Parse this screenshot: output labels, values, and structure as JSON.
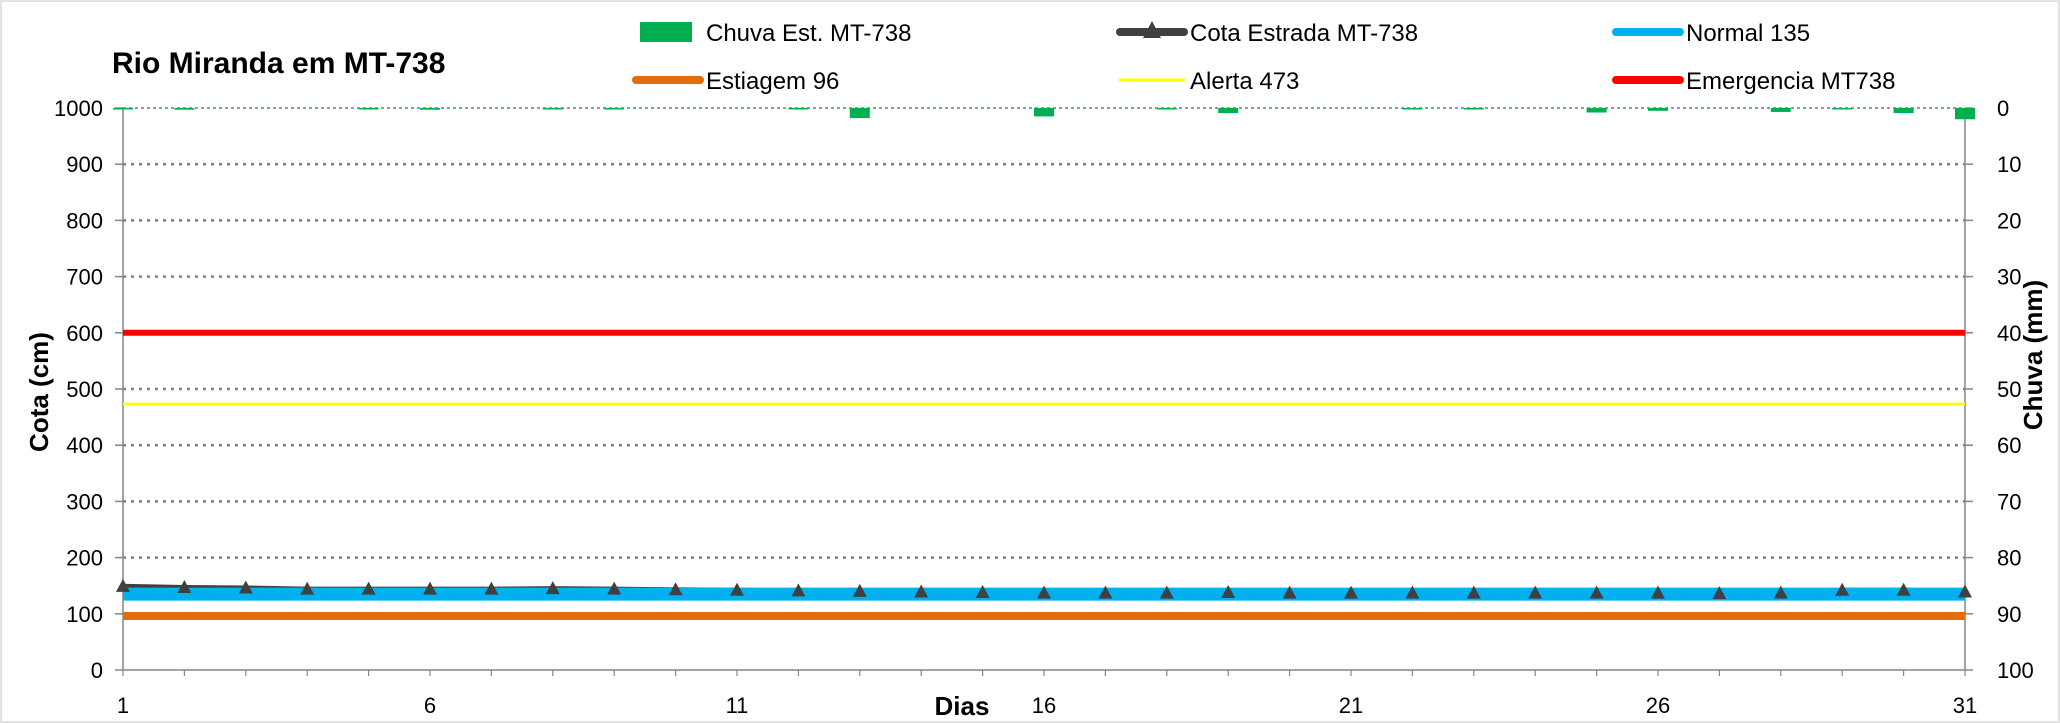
{
  "chart_data": {
    "type": "line",
    "title": "Rio Miranda  em MT-738",
    "xlabel": "Dias",
    "ylabel": "Cota    (cm)",
    "y2label": "Chuva (mm)",
    "xlim": [
      1,
      31
    ],
    "ylim": [
      0,
      1000
    ],
    "y2lim": [
      0,
      100
    ],
    "y2_inverted": true,
    "x_ticks": [
      1,
      6,
      11,
      16,
      21,
      26,
      31
    ],
    "y_ticks": [
      0,
      100,
      200,
      300,
      400,
      500,
      600,
      700,
      800,
      900,
      1000
    ],
    "y2_ticks": [
      0,
      10,
      20,
      30,
      40,
      50,
      60,
      70,
      80,
      90,
      100
    ],
    "grid": true,
    "legend_position": "top",
    "days": [
      1,
      2,
      3,
      4,
      5,
      6,
      7,
      8,
      9,
      10,
      11,
      12,
      13,
      14,
      15,
      16,
      17,
      18,
      19,
      20,
      21,
      22,
      23,
      24,
      25,
      26,
      27,
      28,
      29,
      30,
      31
    ],
    "series": [
      {
        "name": "Chuva Est. MT-738",
        "kind": "bar",
        "axis": "right",
        "color": "#00b050",
        "values": [
          0.2,
          0.3,
          0,
          0,
          0.2,
          0.3,
          0,
          0.2,
          0.2,
          0,
          0,
          0.2,
          1.8,
          0,
          0,
          1.5,
          0,
          0.2,
          0.9,
          0,
          0,
          0.2,
          0.2,
          0,
          0.8,
          0.5,
          0,
          0.7,
          0.2,
          0.9,
          2.0
        ]
      },
      {
        "name": "Cota Estrada MT-738",
        "kind": "line",
        "axis": "left",
        "color": "#404040",
        "marker": "triangle",
        "values": [
          148,
          146,
          145,
          143,
          143,
          143,
          143,
          144,
          143,
          142,
          141,
          140,
          139,
          138,
          137,
          136,
          136,
          136,
          137,
          136,
          136,
          136,
          136,
          136,
          136,
          136,
          135,
          136,
          141,
          141,
          138
        ]
      },
      {
        "name": "Normal  135",
        "kind": "line",
        "axis": "left",
        "color": "#00b0f0",
        "values": [
          135,
          135,
          135,
          135,
          135,
          135,
          135,
          135,
          135,
          135,
          135,
          135,
          135,
          135,
          135,
          135,
          135,
          135,
          135,
          135,
          135,
          135,
          135,
          135,
          135,
          135,
          135,
          135,
          135,
          135,
          135
        ]
      },
      {
        "name": "Estiagem 96",
        "kind": "line",
        "axis": "left",
        "color": "#e46c0a",
        "values": [
          96,
          96,
          96,
          96,
          96,
          96,
          96,
          96,
          96,
          96,
          96,
          96,
          96,
          96,
          96,
          96,
          96,
          96,
          96,
          96,
          96,
          96,
          96,
          96,
          96,
          96,
          96,
          96,
          96,
          96,
          96
        ]
      },
      {
        "name": "Alerta 473",
        "kind": "line",
        "axis": "left",
        "color": "#ffff00",
        "values": [
          473,
          473,
          473,
          473,
          473,
          473,
          473,
          473,
          473,
          473,
          473,
          473,
          473,
          473,
          473,
          473,
          473,
          473,
          473,
          473,
          473,
          473,
          473,
          473,
          473,
          473,
          473,
          473,
          473,
          473,
          473
        ]
      },
      {
        "name": "Emergencia MT738",
        "kind": "line",
        "axis": "left",
        "color": "#ff0000",
        "values": [
          600,
          600,
          600,
          600,
          600,
          600,
          600,
          600,
          600,
          600,
          600,
          600,
          600,
          600,
          600,
          600,
          600,
          600,
          600,
          600,
          600,
          600,
          600,
          600,
          600,
          600,
          600,
          600,
          600,
          600,
          600
        ]
      }
    ]
  }
}
